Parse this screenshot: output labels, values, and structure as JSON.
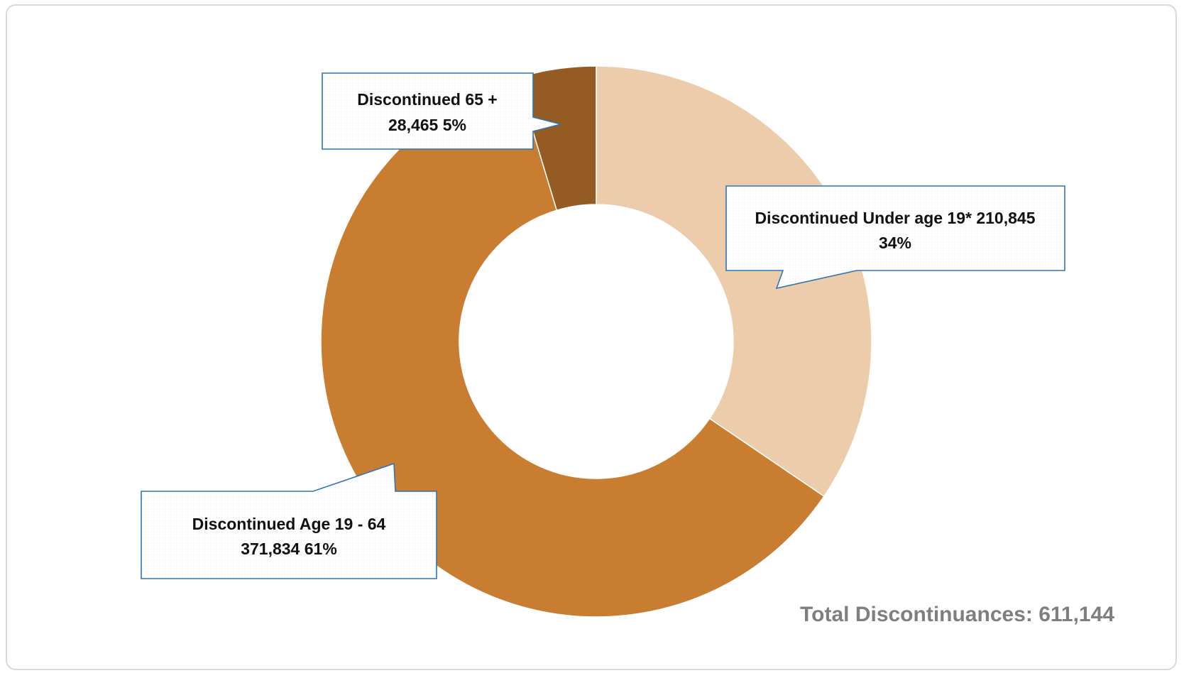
{
  "chart_data": {
    "type": "pie",
    "style": "donut",
    "title": "",
    "categories": [
      "Discontinued Under age 19*",
      "Discontinued Age 19 - 64",
      "Discontinued 65 +"
    ],
    "values": [
      210845,
      371834,
      28465
    ],
    "value_labels": [
      "210,845",
      "371,834",
      "28,465"
    ],
    "percent_labels": [
      "34%",
      "61%",
      "5%"
    ],
    "colors": [
      "#ecccaa",
      "#c97d30",
      "#945c22"
    ],
    "callouts": [
      {
        "line1": "Discontinued Under age 19* 210,845",
        "line2": "34%"
      },
      {
        "line1": "Discontinued Age 19 - 64",
        "line2": "371,834 61%"
      },
      {
        "line1": "Discontinued 65 +",
        "line2": "28,465 5%"
      }
    ],
    "total_label": "Total Discontinuances: 611,144",
    "callout_border_color": "#2e75b6",
    "legend": "none"
  }
}
